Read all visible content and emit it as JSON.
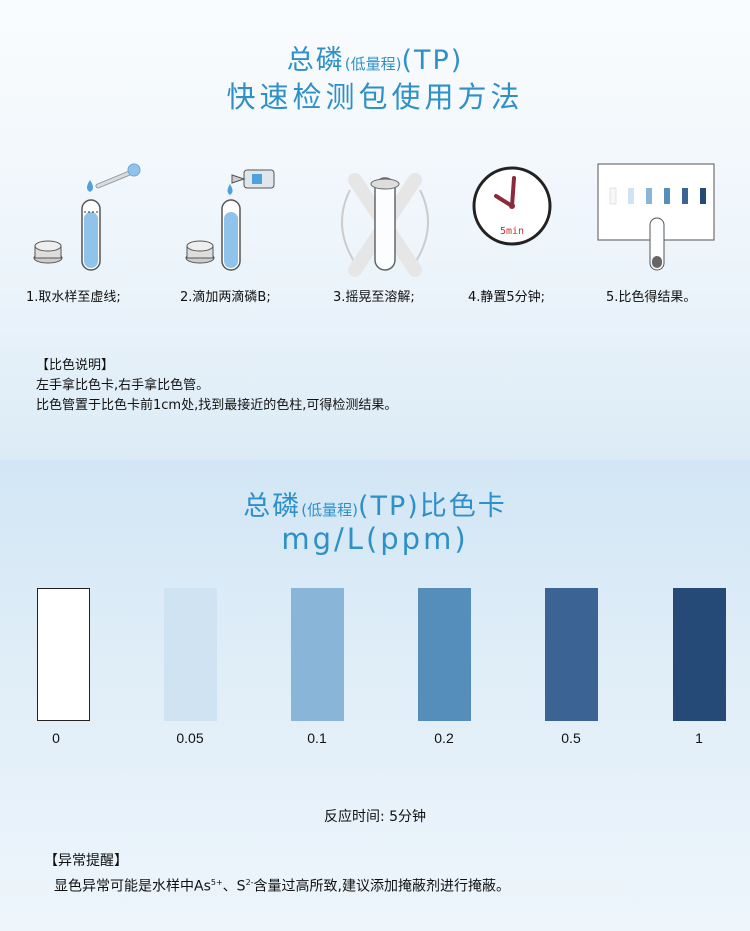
{
  "header": {
    "line1_main": "总磷",
    "line1_small": "(低量程)",
    "line1_tail": "(TP)",
    "line2": "快速检测包使用方法"
  },
  "steps": [
    {
      "label": "1.取水样至虚线;"
    },
    {
      "label": "2.滴加两滴磷B;"
    },
    {
      "label": "3.摇晃至溶解;"
    },
    {
      "label": "4.静置5分钟;"
    },
    {
      "label": "5.比色得结果。"
    }
  ],
  "timer_text": "5min",
  "explanation": {
    "heading": "【比色说明】",
    "lines": [
      "左手拿比色卡,右手拿比色管。",
      "比色管置于比色卡前1cm处,找到最接近的色柱,可得检测结果。"
    ]
  },
  "card_title": {
    "line1_main": "总磷",
    "line1_small": "(低量程)",
    "line1_tail": "(TP)比色卡",
    "line2": "mg/L(ppm)"
  },
  "color_card": {
    "swatches": [
      {
        "label": "0",
        "color": "#ffffff"
      },
      {
        "label": "0.05",
        "color": "#cfe3f2"
      },
      {
        "label": "0.1",
        "color": "#88b5d8"
      },
      {
        "label": "0.2",
        "color": "#568ebb"
      },
      {
        "label": "0.5",
        "color": "#3b6393"
      },
      {
        "label": "1",
        "color": "#264a78"
      }
    ]
  },
  "reaction_time": "反应时间: 5分钟",
  "warning": {
    "heading": "【异常提醒】",
    "text_a": "显色异常可能是水样中As",
    "sup_a": "5+",
    "text_b": "、S",
    "sup_b": "2-",
    "text_c": "含量过高所致,建议添加掩蔽剂进行掩蔽。"
  },
  "colors": {
    "title": "#2f90c8",
    "water": "#8fc3ea"
  }
}
